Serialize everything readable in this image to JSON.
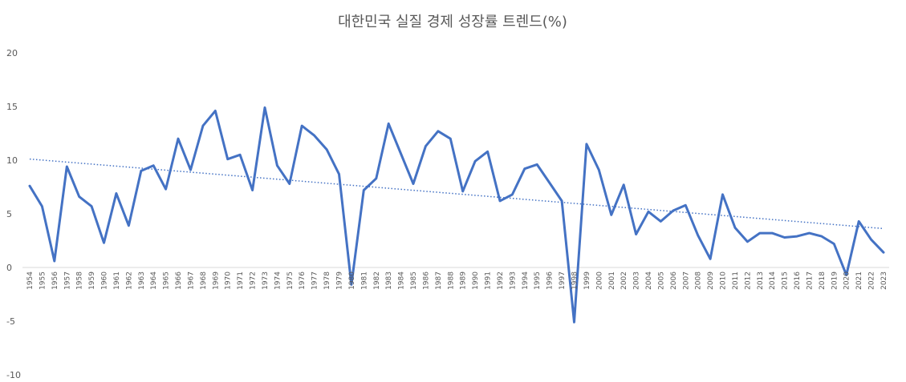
{
  "chart_data": {
    "type": "line",
    "title": "대한민국 실질 경제 성장률 트렌드(%)",
    "xlabel": "",
    "ylabel": "",
    "ylim": [
      -10,
      20
    ],
    "yticks": [
      -10,
      -5,
      0,
      5,
      10,
      15,
      20
    ],
    "grid": false,
    "legend": "none",
    "colors": {
      "series": "#4472C4",
      "trendline": "#4472C4",
      "text": "#595959",
      "axis": "#D9D9D9"
    },
    "x": [
      "1954",
      "1955",
      "1956",
      "1957",
      "1958",
      "1959",
      "1960",
      "1961",
      "1962",
      "1963",
      "1964",
      "1965",
      "1966",
      "1967",
      "1968",
      "1969",
      "1970",
      "1971",
      "1972",
      "1973",
      "1974",
      "1975",
      "1976",
      "1977",
      "1978",
      "1979",
      "1980",
      "1981",
      "1982",
      "1983",
      "1984",
      "1985",
      "1986",
      "1987",
      "1988",
      "1989",
      "1990",
      "1991",
      "1992",
      "1993",
      "1994",
      "1995",
      "1996",
      "1997",
      "1998",
      "1999",
      "2000",
      "2001",
      "2002",
      "2003",
      "2004",
      "2005",
      "2006",
      "2007",
      "2008",
      "2009",
      "2010",
      "2011",
      "2012",
      "2013",
      "2014",
      "2015",
      "2016",
      "2017",
      "2018",
      "2019",
      "2020",
      "2021",
      "2022",
      "2023"
    ],
    "series": [
      {
        "values": [
          7.6,
          5.7,
          0.6,
          9.4,
          6.6,
          5.7,
          2.3,
          6.9,
          3.9,
          9.0,
          9.5,
          7.3,
          12.0,
          9.1,
          13.2,
          14.6,
          10.1,
          10.5,
          7.2,
          14.9,
          9.5,
          7.8,
          13.2,
          12.3,
          11.0,
          8.7,
          -1.6,
          7.2,
          8.3,
          13.4,
          10.6,
          7.8,
          11.3,
          12.7,
          12.0,
          7.1,
          9.9,
          10.8,
          6.2,
          6.8,
          9.2,
          9.6,
          7.9,
          6.2,
          -5.1,
          11.5,
          9.1,
          4.9,
          7.7,
          3.1,
          5.2,
          4.3,
          5.3,
          5.8,
          3.0,
          0.8,
          6.8,
          3.7,
          2.4,
          3.2,
          3.2,
          2.8,
          2.9,
          3.2,
          2.9,
          2.2,
          -0.7,
          4.3,
          2.6,
          1.4
        ]
      }
    ],
    "trendline": {
      "type": "linear",
      "style": "dotted"
    }
  }
}
